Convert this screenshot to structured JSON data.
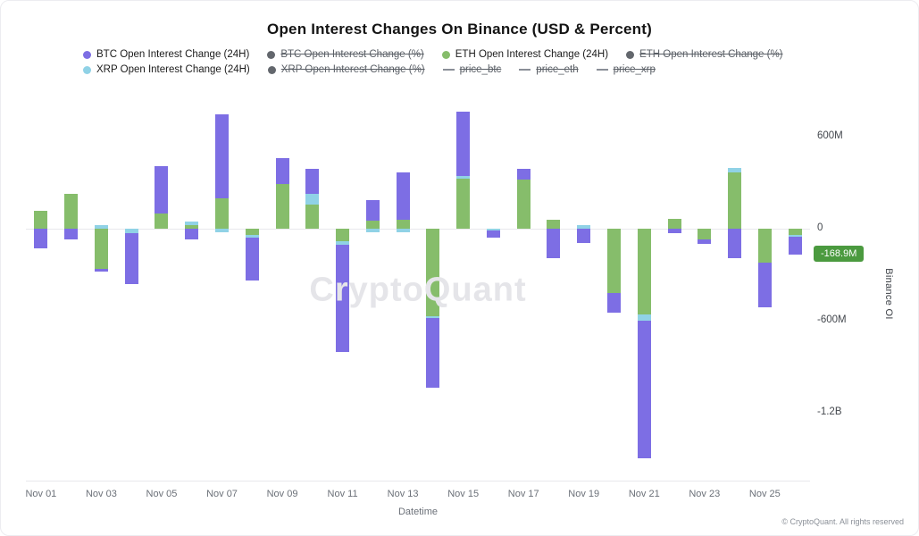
{
  "title": "Open Interest Changes On Binance (USD & Percent)",
  "watermark": "CryptoQuant",
  "footer": "© CryptoQuant. All rights reserved",
  "legend": {
    "rows": [
      [
        {
          "label": "BTC Open Interest Change (24H)",
          "marker": "dot",
          "color": "#7d6ee4",
          "enabled": true
        },
        {
          "label": "BTC Open Interest Change (%)",
          "marker": "dot",
          "color": "#63676d",
          "enabled": false
        },
        {
          "label": "ETH Open Interest Change (24H)",
          "marker": "dot",
          "color": "#86bd6b",
          "enabled": true
        },
        {
          "label": "ETH Open Interest Change (%)",
          "marker": "dot",
          "color": "#63676d",
          "enabled": false
        }
      ],
      [
        {
          "label": "XRP Open Interest Change (24H)",
          "marker": "dot",
          "color": "#90d2e6",
          "enabled": true
        },
        {
          "label": "XRP Open Interest Change (%)",
          "marker": "dot",
          "color": "#63676d",
          "enabled": false
        },
        {
          "label": "price_btc",
          "marker": "line",
          "color": "#8a8f98",
          "enabled": false
        },
        {
          "label": "price_eth",
          "marker": "line",
          "color": "#8a8f98",
          "enabled": false
        },
        {
          "label": "price_xrp",
          "marker": "line",
          "color": "#8a8f98",
          "enabled": false
        }
      ]
    ]
  },
  "chart_data": {
    "type": "bar",
    "stacked": true,
    "title": "Open Interest Changes On Binance (USD & Percent)",
    "xlabel": "Datetime",
    "ylabel": "Binance OI",
    "unit": "USD millions",
    "ylim_millions": [
      -1650,
      800
    ],
    "grid": false,
    "legend_position": "top",
    "x_tick_step": 2,
    "categories": [
      "Nov 01",
      "Nov 02",
      "Nov 03",
      "Nov 04",
      "Nov 05",
      "Nov 06",
      "Nov 07",
      "Nov 08",
      "Nov 09",
      "Nov 10",
      "Nov 11",
      "Nov 12",
      "Nov 13",
      "Nov 14",
      "Nov 15",
      "Nov 16",
      "Nov 17",
      "Nov 18",
      "Nov 19",
      "Nov 20",
      "Nov 21",
      "Nov 22",
      "Nov 23",
      "Nov 24",
      "Nov 25",
      "Nov 26"
    ],
    "stack_order": [
      "eth",
      "xrp",
      "btc"
    ],
    "series": [
      {
        "id": "btc",
        "name": "BTC Open Interest Change (24H)",
        "color": "#7d6ee4",
        "values": [
          -130,
          -70,
          -20,
          -330,
          310,
          -70,
          550,
          -280,
          170,
          160,
          -700,
          130,
          310,
          -450,
          420,
          -45,
          70,
          -190,
          -90,
          -130,
          -900,
          -30,
          -30,
          -190,
          -290,
          -120
        ]
      },
      {
        "id": "eth",
        "name": "ETH Open Interest Change (24H)",
        "color": "#86bd6b",
        "values": [
          120,
          230,
          -260,
          0,
          100,
          25,
          200,
          -40,
          290,
          160,
          -80,
          55,
          60,
          -570,
          330,
          0,
          320,
          60,
          0,
          -420,
          -560,
          65,
          -70,
          370,
          -220,
          -40
        ]
      },
      {
        "id": "xrp",
        "name": "XRP Open Interest Change (24H)",
        "color": "#90d2e6",
        "values": [
          0,
          0,
          25,
          -30,
          0,
          20,
          -25,
          -15,
          0,
          70,
          -25,
          -20,
          -20,
          -15,
          15,
          -10,
          0,
          0,
          25,
          0,
          -40,
          0,
          0,
          25,
          0,
          -9
        ]
      }
    ],
    "yticks": [
      {
        "value": 600,
        "label": "600M"
      },
      {
        "value": 0,
        "label": "0"
      },
      {
        "value": -600,
        "label": "-600M"
      },
      {
        "value": -1200,
        "label": "-1.2B"
      }
    ]
  },
  "right_axis": {
    "badge": {
      "label": "-168.9M",
      "value": -168.9,
      "color": "#4b9a3f"
    }
  }
}
